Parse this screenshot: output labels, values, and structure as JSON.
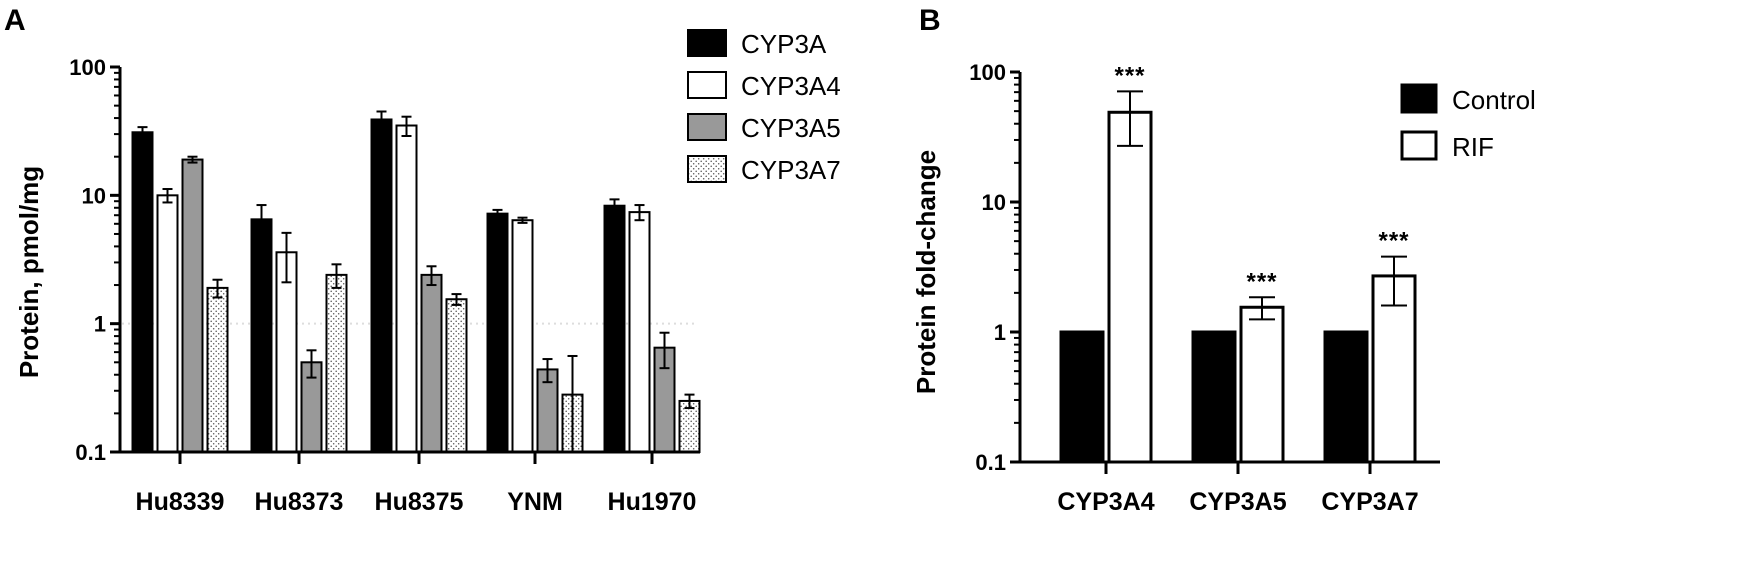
{
  "colors": {
    "CYP3A": "#000000",
    "CYP3A4": "#ffffff",
    "CYP3A5": "#999999",
    "CYP3A7": "dotted",
    "Control": "#000000",
    "RIF": "#ffffff"
  },
  "chart_data": [
    {
      "panel": "A",
      "type": "bar",
      "ylabel": "Protein, pmol/mg",
      "yscale": "log",
      "ylim": [
        0.1,
        100
      ],
      "yticks": [
        "0.1",
        "1",
        "10",
        "100"
      ],
      "reference_line": 1,
      "legend_position": "top-right",
      "categories": [
        "Hu8339",
        "Hu8373",
        "Hu8375",
        "YNM",
        "Hu1970"
      ],
      "series": [
        {
          "name": "CYP3A",
          "values": [
            31,
            6.5,
            39,
            7.2,
            8.3
          ],
          "errors": [
            3,
            1.9,
            6,
            0.5,
            1.0
          ]
        },
        {
          "name": "CYP3A4",
          "values": [
            10,
            3.6,
            35,
            6.4,
            7.4
          ],
          "errors": [
            1.2,
            1.5,
            6,
            0.3,
            1.0
          ]
        },
        {
          "name": "CYP3A5",
          "values": [
            19,
            0.5,
            2.4,
            0.44,
            0.65
          ],
          "errors": [
            1.0,
            0.12,
            0.4,
            0.09,
            0.2
          ]
        },
        {
          "name": "CYP3A7",
          "values": [
            1.9,
            2.4,
            1.55,
            0.28,
            0.25
          ],
          "errors": [
            0.3,
            0.5,
            0.15,
            0.28,
            0.03
          ]
        }
      ]
    },
    {
      "panel": "B",
      "type": "bar",
      "ylabel": "Protein fold-change",
      "yscale": "log",
      "ylim": [
        0.1,
        100
      ],
      "yticks": [
        "0.1",
        "1",
        "10",
        "100"
      ],
      "legend_position": "top-right",
      "categories": [
        "CYP3A4",
        "CYP3A5",
        "CYP3A7"
      ],
      "series": [
        {
          "name": "Control",
          "values": [
            1,
            1,
            1
          ],
          "errors": [
            0,
            0,
            0
          ]
        },
        {
          "name": "RIF",
          "values": [
            49,
            1.55,
            2.7
          ],
          "errors": [
            22,
            0.3,
            1.1
          ]
        }
      ],
      "annotations": [
        "***",
        "***",
        "***"
      ]
    }
  ]
}
